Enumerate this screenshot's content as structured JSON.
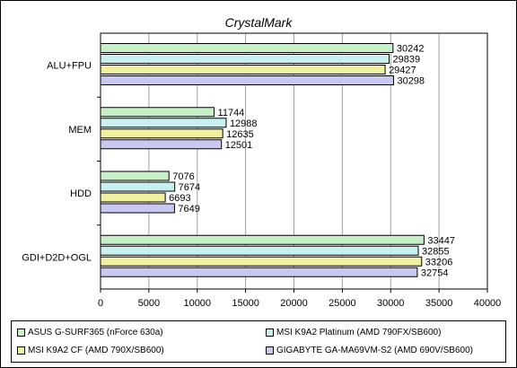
{
  "chart_data": {
    "type": "bar",
    "orientation": "horizontal",
    "title": "CrystalMark",
    "categories": [
      "ALU+FPU",
      "MEM",
      "HDD",
      "GDI+D2D+OGL"
    ],
    "series": [
      {
        "name": "ASUS G-SURF365 (nForce 630a)",
        "color": "#c8f0c8",
        "values": [
          30242,
          11744,
          7076,
          33447
        ]
      },
      {
        "name": "MSI K9A2 Platinum (AMD 790FX/SB600)",
        "color": "#c8f0f0",
        "values": [
          29839,
          12988,
          7674,
          32855
        ]
      },
      {
        "name": "MSI K9A2 CF (AMD 790X/SB600)",
        "color": "#f0f0a0",
        "values": [
          29427,
          12635,
          6693,
          33206
        ]
      },
      {
        "name": "GIGABYTE GA-MA69VM-S2 (AMD 690V/SB600)",
        "color": "#c8c8f0",
        "values": [
          30298,
          12501,
          7649,
          32754
        ]
      }
    ],
    "xlim": [
      0,
      40000
    ],
    "xticks": [
      0,
      5000,
      10000,
      15000,
      20000,
      25000,
      30000,
      35000,
      40000
    ],
    "grid": true,
    "legend_position": "bottom"
  }
}
